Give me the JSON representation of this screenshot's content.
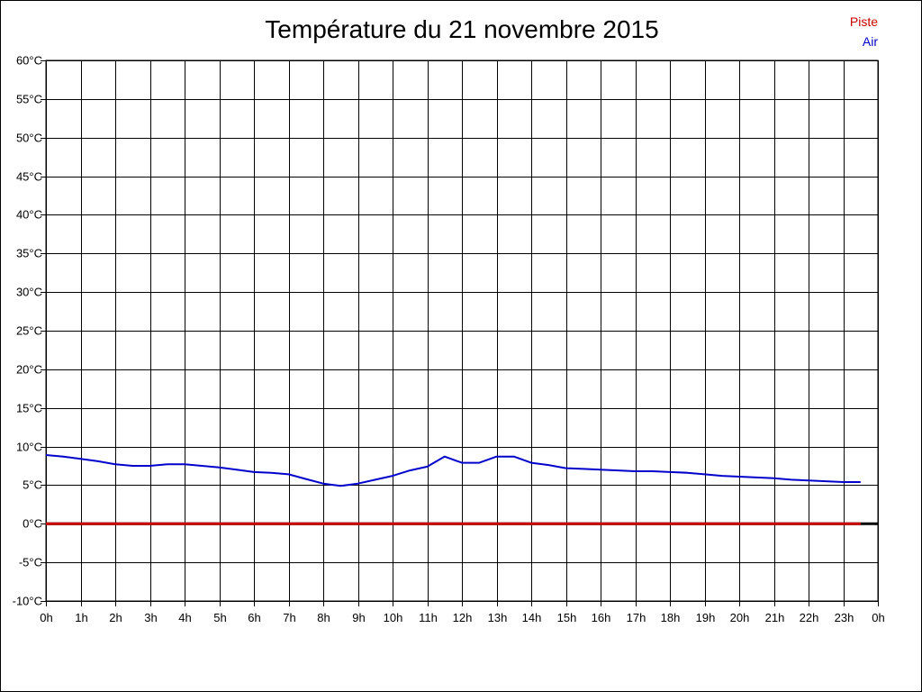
{
  "chart_data": {
    "type": "line",
    "title": "Température du 21 novembre 2015",
    "xlabel": "",
    "ylabel": "",
    "x_tick_labels": [
      "0h",
      "1h",
      "2h",
      "3h",
      "4h",
      "5h",
      "6h",
      "7h",
      "8h",
      "9h",
      "10h",
      "11h",
      "12h",
      "13h",
      "14h",
      "15h",
      "16h",
      "17h",
      "18h",
      "19h",
      "20h",
      "21h",
      "22h",
      "23h",
      "0h"
    ],
    "y_tick_labels": [
      "60°C",
      "55°C",
      "50°C",
      "45°C",
      "40°C",
      "35°C",
      "30°C",
      "25°C",
      "20°C",
      "15°C",
      "10°C",
      "5°C",
      "0°C",
      "-5°C",
      "-10°C"
    ],
    "xlim": [
      0,
      24
    ],
    "ylim": [
      -10,
      60
    ],
    "y_step": 5,
    "grid": true,
    "legend_position": "top-right",
    "series": [
      {
        "name": "Piste",
        "color": "#cc0000",
        "x": [
          0,
          23.5
        ],
        "y": [
          0,
          0
        ]
      },
      {
        "name": "Air",
        "color": "#0000cc",
        "x": [
          0,
          0.5,
          1,
          1.5,
          2,
          2.5,
          3,
          3.5,
          4,
          4.5,
          5,
          5.5,
          6,
          6.5,
          7,
          7.5,
          8,
          8.5,
          9,
          9.5,
          10,
          10.5,
          11,
          11.5,
          12,
          12.5,
          13,
          13.5,
          14,
          14.5,
          15,
          15.5,
          16,
          16.5,
          17,
          17.5,
          18,
          18.5,
          19,
          19.5,
          20,
          20.5,
          21,
          21.5,
          22,
          22.5,
          23,
          23.5
        ],
        "y": [
          8.9,
          8.7,
          8.4,
          8.1,
          7.7,
          7.5,
          7.5,
          7.7,
          7.7,
          7.5,
          7.3,
          7.0,
          6.7,
          6.6,
          6.4,
          5.8,
          5.2,
          4.9,
          5.2,
          5.7,
          6.2,
          6.9,
          7.4,
          8.7,
          7.9,
          7.9,
          8.7,
          8.7,
          7.9,
          7.6,
          7.2,
          7.1,
          7.0,
          6.9,
          6.8,
          6.8,
          6.7,
          6.6,
          6.4,
          6.2,
          6.1,
          6.0,
          5.9,
          5.7,
          5.6,
          5.5,
          5.4,
          5.4
        ]
      }
    ]
  }
}
